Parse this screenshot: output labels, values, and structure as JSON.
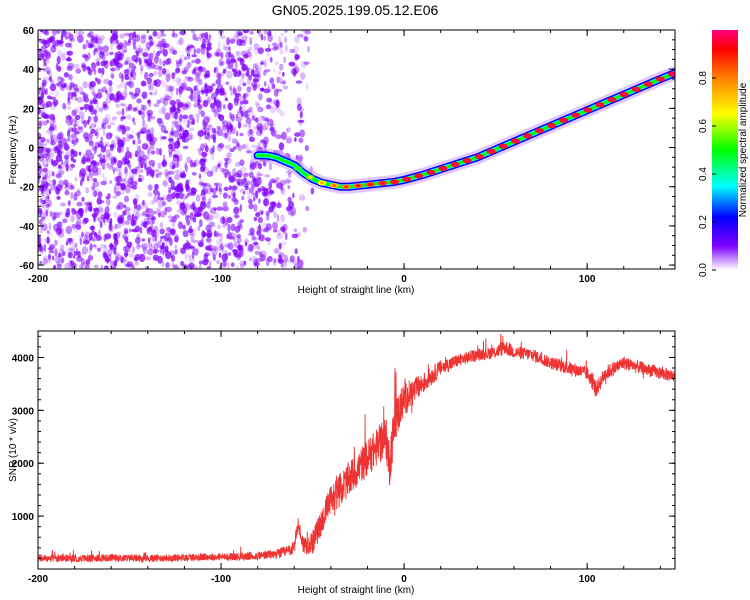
{
  "title": "GN05.2025.199.05.12.E06",
  "chart_data": [
    {
      "type": "heatmap",
      "xlabel": "Height of straight line (km)",
      "ylabel": "Frequency (Hz)",
      "xlim": [
        -200,
        148
      ],
      "ylim": [
        -62,
        60
      ],
      "x_ticks": [
        -200,
        -100,
        0,
        100
      ],
      "y_ticks": [
        -60,
        -40,
        -20,
        0,
        20,
        40,
        60
      ],
      "colorbar": {
        "label": "Normalized spectral amplitude",
        "range": [
          0,
          1
        ],
        "ticks": [
          0.0,
          0.2,
          0.4,
          0.6,
          0.8
        ],
        "colors": [
          "#ffffff",
          "#8000ff",
          "#0000ff",
          "#00ffff",
          "#00ff00",
          "#ffff00",
          "#ff8000",
          "#ff0000",
          "#ff0080"
        ]
      },
      "noise_region": {
        "x_range": [
          -200,
          -55
        ],
        "amplitude_range": [
          0.0,
          0.3
        ],
        "color": "#8000ff"
      },
      "signal_track": {
        "x": [
          -80,
          -75,
          -70,
          -65,
          -60,
          -55,
          -50,
          -45,
          -40,
          -35,
          -30,
          -25,
          -20,
          -15,
          -10,
          -5,
          0,
          10,
          20,
          30,
          40,
          50,
          60,
          70,
          80,
          90,
          100,
          110,
          120,
          130,
          140,
          148
        ],
        "frequency": [
          -4,
          -4,
          -5,
          -7,
          -9,
          -13,
          -16,
          -18,
          -19,
          -20,
          -20,
          -19.5,
          -19,
          -18.5,
          -18,
          -17.5,
          -16.5,
          -14,
          -11,
          -8,
          -5,
          -1,
          3,
          7,
          11,
          15,
          19,
          23,
          27,
          31,
          35,
          38
        ],
        "amplitude": [
          0.3,
          0.32,
          0.35,
          0.38,
          0.42,
          0.5,
          0.58,
          0.65,
          0.72,
          0.76,
          0.8,
          0.82,
          0.84,
          0.86,
          0.88,
          0.89,
          0.9,
          0.9,
          0.9,
          0.9,
          0.9,
          0.9,
          0.9,
          0.9,
          0.9,
          0.9,
          0.9,
          0.9,
          0.9,
          0.9,
          0.9,
          0.95
        ]
      }
    },
    {
      "type": "line",
      "xlabel": "Height of straight line (km)",
      "ylabel": "SNR (10 * v/v)",
      "xlim": [
        -200,
        148
      ],
      "ylim": [
        0,
        4500
      ],
      "x_ticks": [
        -200,
        -100,
        0,
        100
      ],
      "y_ticks": [
        1000,
        2000,
        3000,
        4000
      ],
      "color": "#ee3333",
      "series": [
        {
          "x": [
            -200,
            -180,
            -160,
            -140,
            -120,
            -100,
            -90,
            -80,
            -70,
            -65,
            -60,
            -58,
            -55,
            -50,
            -45,
            -40,
            -35,
            -30,
            -25,
            -20,
            -15,
            -10,
            -8,
            -5,
            0,
            10,
            20,
            30,
            40,
            50,
            55,
            60,
            70,
            80,
            90,
            100,
            105,
            110,
            120,
            130,
            140,
            148
          ],
          "y": [
            200,
            200,
            210,
            200,
            220,
            230,
            230,
            250,
            280,
            320,
            400,
            850,
            450,
            500,
            900,
            1300,
            1500,
            1700,
            1900,
            2100,
            2300,
            2500,
            2000,
            2800,
            3200,
            3500,
            3800,
            3950,
            4050,
            4100,
            4200,
            4100,
            4050,
            3900,
            3800,
            3700,
            3400,
            3700,
            3900,
            3800,
            3700,
            3650
          ],
          "noise": [
            70,
            70,
            70,
            70,
            70,
            70,
            80,
            80,
            90,
            110,
            130,
            150,
            180,
            220,
            260,
            300,
            320,
            330,
            340,
            350,
            360,
            400,
            450,
            420,
            320,
            200,
            150,
            120,
            110,
            120,
            150,
            120,
            120,
            120,
            130,
            130,
            150,
            140,
            130,
            120,
            120,
            120
          ]
        }
      ]
    }
  ]
}
